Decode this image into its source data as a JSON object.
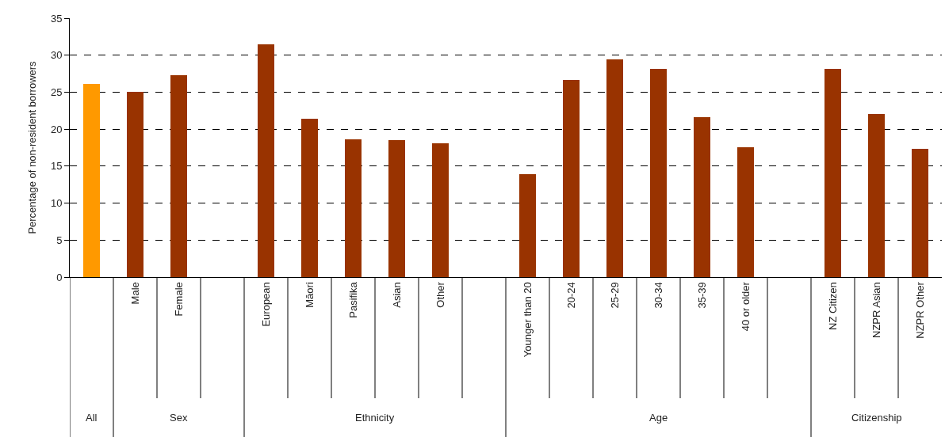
{
  "chart_data": {
    "type": "bar",
    "ylabel": "Percentage of non-resident borrowers",
    "categories": [
      null,
      "Male",
      "Female",
      null,
      "European",
      "Māori",
      "Pasifika",
      "Asian",
      "Other",
      null,
      "Younger than 20",
      "20-24",
      "25-29",
      "30-34",
      "35-39",
      "40 or older",
      null,
      "NZ Citizen",
      "NZPR Asian",
      "NZPR Other"
    ],
    "values": [
      26.1,
      25.0,
      27.3,
      null,
      31.5,
      21.4,
      18.6,
      18.5,
      18.1,
      null,
      13.9,
      26.6,
      29.4,
      28.1,
      21.6,
      17.6,
      null,
      28.1,
      22.0,
      17.3
    ],
    "colors": [
      "#ff9900",
      "#993300",
      "#993300",
      "#993300",
      "#993300",
      "#993300",
      "#993300",
      "#993300",
      "#993300",
      "#993300",
      "#993300",
      "#993300",
      "#993300",
      "#993300",
      "#993300",
      "#993300",
      "#993300",
      "#993300",
      "#993300",
      "#993300"
    ],
    "annotations": [
      "All",
      "Sex",
      "Ethnicity",
      "Age",
      "Citizenship"
    ],
    "ylim": [
      0,
      35
    ],
    "yticks": [
      0,
      5,
      10,
      15,
      20,
      25,
      30,
      35
    ],
    "grid": "y"
  }
}
